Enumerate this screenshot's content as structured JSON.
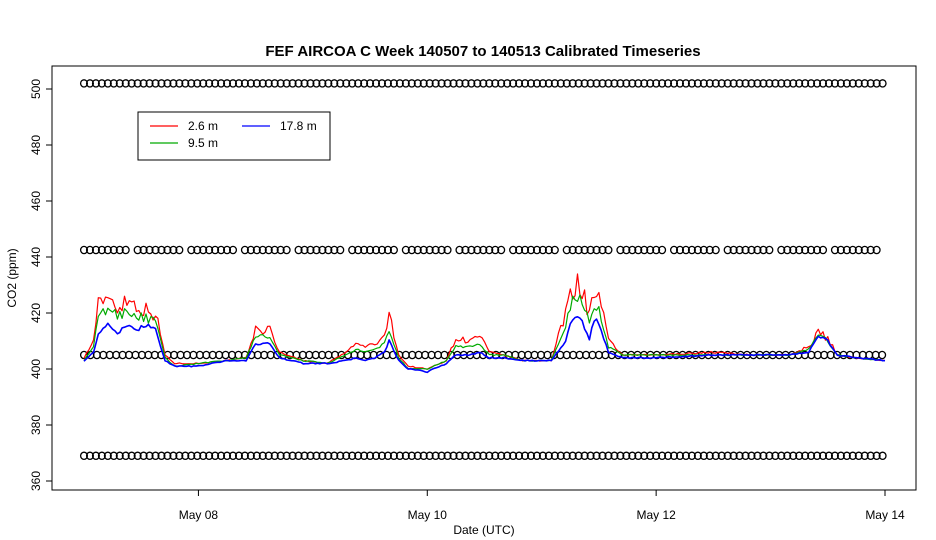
{
  "chart_data": {
    "type": "line",
    "title": "FEF AIRCOA C  Week 140507 to 140513  Calibrated Timeseries",
    "xlabel": "Date (UTC)",
    "ylabel": "CO2 (ppm)",
    "x_unit": "days",
    "xlim": [
      "2014-05-07 00:00",
      "2014-05-14 00:00"
    ],
    "ylim": [
      360,
      505
    ],
    "x_ticks": [
      {
        "date": "2014-05-08",
        "label": "May 08"
      },
      {
        "date": "2014-05-10",
        "label": "May 10"
      },
      {
        "date": "2014-05-12",
        "label": "May 12"
      },
      {
        "date": "2014-05-14",
        "label": "May 14"
      }
    ],
    "y_ticks": [
      360,
      380,
      400,
      420,
      440,
      460,
      480,
      500
    ],
    "legend": {
      "position": "top-left",
      "columns": 2
    },
    "series": [
      {
        "name": "2.6 m",
        "color": "#ff0000",
        "points": [
          [
            "2014-05-07 00:00",
            404
          ],
          [
            "2014-05-07 02:00",
            410
          ],
          [
            "2014-05-07 03:00",
            425
          ],
          [
            "2014-05-07 04:00",
            421
          ],
          [
            "2014-05-07 05:00",
            428
          ],
          [
            "2014-05-07 06:00",
            424
          ],
          [
            "2014-05-07 07:00",
            422
          ],
          [
            "2014-05-07 09:00",
            425
          ],
          [
            "2014-05-07 11:00",
            423
          ],
          [
            "2014-05-07 13:00",
            421
          ],
          [
            "2014-05-07 15:00",
            420
          ],
          [
            "2014-05-07 17:00",
            405
          ],
          [
            "2014-05-07 19:00",
            402
          ],
          [
            "2014-05-08 00:00",
            402
          ],
          [
            "2014-05-08 06:00",
            403
          ],
          [
            "2014-05-08 10:00",
            404
          ],
          [
            "2014-05-08 12:00",
            414
          ],
          [
            "2014-05-08 15:00",
            414
          ],
          [
            "2014-05-08 17:00",
            406
          ],
          [
            "2014-05-08 22:00",
            403
          ],
          [
            "2014-05-09 03:00",
            402
          ],
          [
            "2014-05-09 07:00",
            406
          ],
          [
            "2014-05-09 09:00",
            409
          ],
          [
            "2014-05-09 11:00",
            408
          ],
          [
            "2014-05-09 13:00",
            409
          ],
          [
            "2014-05-09 15:00",
            411
          ],
          [
            "2014-05-09 16:00",
            420
          ],
          [
            "2014-05-09 18:00",
            405
          ],
          [
            "2014-05-09 20:00",
            401
          ],
          [
            "2014-05-10 00:00",
            400
          ],
          [
            "2014-05-10 04:00",
            403
          ],
          [
            "2014-05-10 06:00",
            411
          ],
          [
            "2014-05-10 09:00",
            410
          ],
          [
            "2014-05-10 11:00",
            412
          ],
          [
            "2014-05-10 13:00",
            406
          ],
          [
            "2014-05-10 16:00",
            405
          ],
          [
            "2014-05-10 20:00",
            403
          ],
          [
            "2014-05-11 02:00",
            403
          ],
          [
            "2014-05-11 05:00",
            420
          ],
          [
            "2014-05-11 06:00",
            428
          ],
          [
            "2014-05-11 08:00",
            431
          ],
          [
            "2014-05-11 09:00",
            425
          ],
          [
            "2014-05-11 10:00",
            420
          ],
          [
            "2014-05-11 11:00",
            427
          ],
          [
            "2014-05-11 12:00",
            426
          ],
          [
            "2014-05-11 14:00",
            410
          ],
          [
            "2014-05-11 17:00",
            405
          ],
          [
            "2014-05-12 00:00",
            405
          ],
          [
            "2014-05-12 12:00",
            406
          ],
          [
            "2014-05-12 20:00",
            405
          ],
          [
            "2014-05-13 04:00",
            405
          ],
          [
            "2014-05-13 08:00",
            408
          ],
          [
            "2014-05-13 10:00",
            413
          ],
          [
            "2014-05-13 12:00",
            411
          ],
          [
            "2014-05-13 14:00",
            405
          ],
          [
            "2014-05-13 18:00",
            404
          ],
          [
            "2014-05-14 00:00",
            403
          ]
        ]
      },
      {
        "name": "9.5 m",
        "color": "#00aa00",
        "points": [
          [
            "2014-05-07 00:00",
            403
          ],
          [
            "2014-05-07 02:00",
            408
          ],
          [
            "2014-05-07 03:00",
            418
          ],
          [
            "2014-05-07 05:00",
            422
          ],
          [
            "2014-05-07 07:00",
            419
          ],
          [
            "2014-05-07 09:00",
            421
          ],
          [
            "2014-05-07 11:00",
            419
          ],
          [
            "2014-05-07 13:00",
            418
          ],
          [
            "2014-05-07 15:00",
            417
          ],
          [
            "2014-05-07 17:00",
            404
          ],
          [
            "2014-05-07 19:00",
            401
          ],
          [
            "2014-05-08 00:00",
            402
          ],
          [
            "2014-05-08 06:00",
            403
          ],
          [
            "2014-05-08 10:00",
            404
          ],
          [
            "2014-05-08 12:00",
            412
          ],
          [
            "2014-05-08 15:00",
            411
          ],
          [
            "2014-05-08 17:00",
            405
          ],
          [
            "2014-05-08 22:00",
            403
          ],
          [
            "2014-05-09 03:00",
            402
          ],
          [
            "2014-05-09 07:00",
            405
          ],
          [
            "2014-05-09 09:00",
            407
          ],
          [
            "2014-05-09 11:00",
            406
          ],
          [
            "2014-05-09 13:00",
            407
          ],
          [
            "2014-05-09 15:00",
            409
          ],
          [
            "2014-05-09 16:00",
            414
          ],
          [
            "2014-05-09 18:00",
            404
          ],
          [
            "2014-05-09 20:00",
            400
          ],
          [
            "2014-05-10 00:00",
            400
          ],
          [
            "2014-05-10 04:00",
            403
          ],
          [
            "2014-05-10 06:00",
            408
          ],
          [
            "2014-05-10 09:00",
            408
          ],
          [
            "2014-05-10 11:00",
            409
          ],
          [
            "2014-05-10 13:00",
            405
          ],
          [
            "2014-05-10 16:00",
            405
          ],
          [
            "2014-05-10 20:00",
            403
          ],
          [
            "2014-05-11 02:00",
            403
          ],
          [
            "2014-05-11 05:00",
            416
          ],
          [
            "2014-05-11 06:00",
            423
          ],
          [
            "2014-05-11 08:00",
            426
          ],
          [
            "2014-05-11 09:00",
            421
          ],
          [
            "2014-05-11 10:00",
            417
          ],
          [
            "2014-05-11 11:00",
            423
          ],
          [
            "2014-05-11 12:00",
            422
          ],
          [
            "2014-05-11 14:00",
            408
          ],
          [
            "2014-05-11 17:00",
            405
          ],
          [
            "2014-05-12 00:00",
            405
          ],
          [
            "2014-05-12 12:00",
            405
          ],
          [
            "2014-05-12 20:00",
            405
          ],
          [
            "2014-05-13 04:00",
            405
          ],
          [
            "2014-05-13 08:00",
            407
          ],
          [
            "2014-05-13 10:00",
            412
          ],
          [
            "2014-05-13 12:00",
            410
          ],
          [
            "2014-05-13 14:00",
            405
          ],
          [
            "2014-05-13 18:00",
            404
          ],
          [
            "2014-05-14 00:00",
            403
          ]
        ]
      },
      {
        "name": "17.8 m",
        "color": "#0000ff",
        "points": [
          [
            "2014-05-07 00:00",
            403
          ],
          [
            "2014-05-07 02:00",
            406
          ],
          [
            "2014-05-07 03:00",
            412
          ],
          [
            "2014-05-07 05:00",
            416
          ],
          [
            "2014-05-07 07:00",
            413
          ],
          [
            "2014-05-07 09:00",
            415
          ],
          [
            "2014-05-07 11:00",
            414
          ],
          [
            "2014-05-07 13:00",
            416
          ],
          [
            "2014-05-07 15:00",
            414
          ],
          [
            "2014-05-07 17:00",
            403
          ],
          [
            "2014-05-07 19:00",
            401
          ],
          [
            "2014-05-08 00:00",
            401
          ],
          [
            "2014-05-08 06:00",
            403
          ],
          [
            "2014-05-08 10:00",
            403
          ],
          [
            "2014-05-08 12:00",
            409
          ],
          [
            "2014-05-08 15:00",
            409
          ],
          [
            "2014-05-08 17:00",
            404
          ],
          [
            "2014-05-08 22:00",
            402
          ],
          [
            "2014-05-09 03:00",
            402
          ],
          [
            "2014-05-09 07:00",
            403
          ],
          [
            "2014-05-09 09:00",
            404
          ],
          [
            "2014-05-09 11:00",
            403
          ],
          [
            "2014-05-09 13:00",
            404
          ],
          [
            "2014-05-09 15:00",
            406
          ],
          [
            "2014-05-09 16:00",
            410
          ],
          [
            "2014-05-09 18:00",
            403
          ],
          [
            "2014-05-09 20:00",
            400
          ],
          [
            "2014-05-10 00:00",
            399
          ],
          [
            "2014-05-10 04:00",
            402
          ],
          [
            "2014-05-10 06:00",
            405
          ],
          [
            "2014-05-10 09:00",
            405
          ],
          [
            "2014-05-10 11:00",
            406
          ],
          [
            "2014-05-10 13:00",
            404
          ],
          [
            "2014-05-10 16:00",
            404
          ],
          [
            "2014-05-10 20:00",
            403
          ],
          [
            "2014-05-11 02:00",
            403
          ],
          [
            "2014-05-11 05:00",
            410
          ],
          [
            "2014-05-11 06:00",
            416
          ],
          [
            "2014-05-11 08:00",
            419
          ],
          [
            "2014-05-11 09:00",
            415
          ],
          [
            "2014-05-11 10:00",
            410
          ],
          [
            "2014-05-11 11:00",
            418
          ],
          [
            "2014-05-11 12:00",
            416
          ],
          [
            "2014-05-11 14:00",
            406
          ],
          [
            "2014-05-11 17:00",
            404
          ],
          [
            "2014-05-12 00:00",
            404
          ],
          [
            "2014-05-12 12:00",
            405
          ],
          [
            "2014-05-12 20:00",
            405
          ],
          [
            "2014-05-13 04:00",
            405
          ],
          [
            "2014-05-13 08:00",
            406
          ],
          [
            "2014-05-13 10:00",
            412
          ],
          [
            "2014-05-13 12:00",
            410
          ],
          [
            "2014-05-13 14:00",
            405
          ],
          [
            "2014-05-13 18:00",
            404
          ],
          [
            "2014-05-14 00:00",
            403
          ]
        ]
      }
    ],
    "calibration_marker_levels": [
      369,
      405,
      442.5,
      502
    ]
  }
}
